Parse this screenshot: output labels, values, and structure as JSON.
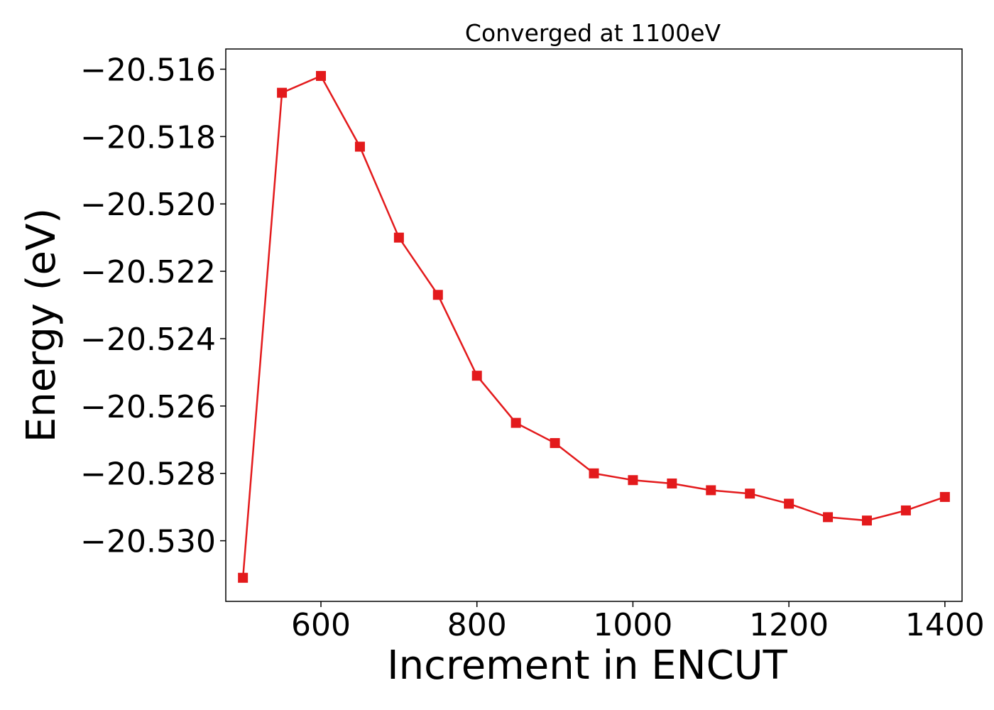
{
  "chart_data": {
    "type": "line",
    "title": "Converged at 1100eV",
    "xlabel": "Increment in ENCUT",
    "ylabel": "Energy (eV)",
    "xlim": [
      478,
      1422
    ],
    "ylim": [
      -20.5318,
      -20.5154
    ],
    "x_ticks": [
      600,
      800,
      1000,
      1200,
      1400
    ],
    "x_tick_labels": [
      "600",
      "800",
      "1000",
      "1200",
      "1400"
    ],
    "y_ticks": [
      -20.53,
      -20.528,
      -20.526,
      -20.524,
      -20.522,
      -20.52,
      -20.518,
      -20.516
    ],
    "y_tick_labels": [
      "−20.530",
      "−20.528",
      "−20.526",
      "−20.524",
      "−20.522",
      "−20.520",
      "−20.518",
      "−20.516"
    ],
    "grid": false,
    "series": [
      {
        "color": "#e31a1c",
        "marker": "square",
        "x": [
          500,
          550,
          600,
          650,
          700,
          750,
          800,
          850,
          900,
          950,
          1000,
          1050,
          1100,
          1150,
          1200,
          1250,
          1300,
          1350,
          1400
        ],
        "y": [
          -20.5311,
          -20.5167,
          -20.5162,
          -20.5183,
          -20.521,
          -20.5227,
          -20.5251,
          -20.5265,
          -20.5271,
          -20.528,
          -20.5282,
          -20.5283,
          -20.5285,
          -20.5286,
          -20.5289,
          -20.5293,
          -20.5294,
          -20.5291,
          -20.5287
        ]
      }
    ]
  }
}
